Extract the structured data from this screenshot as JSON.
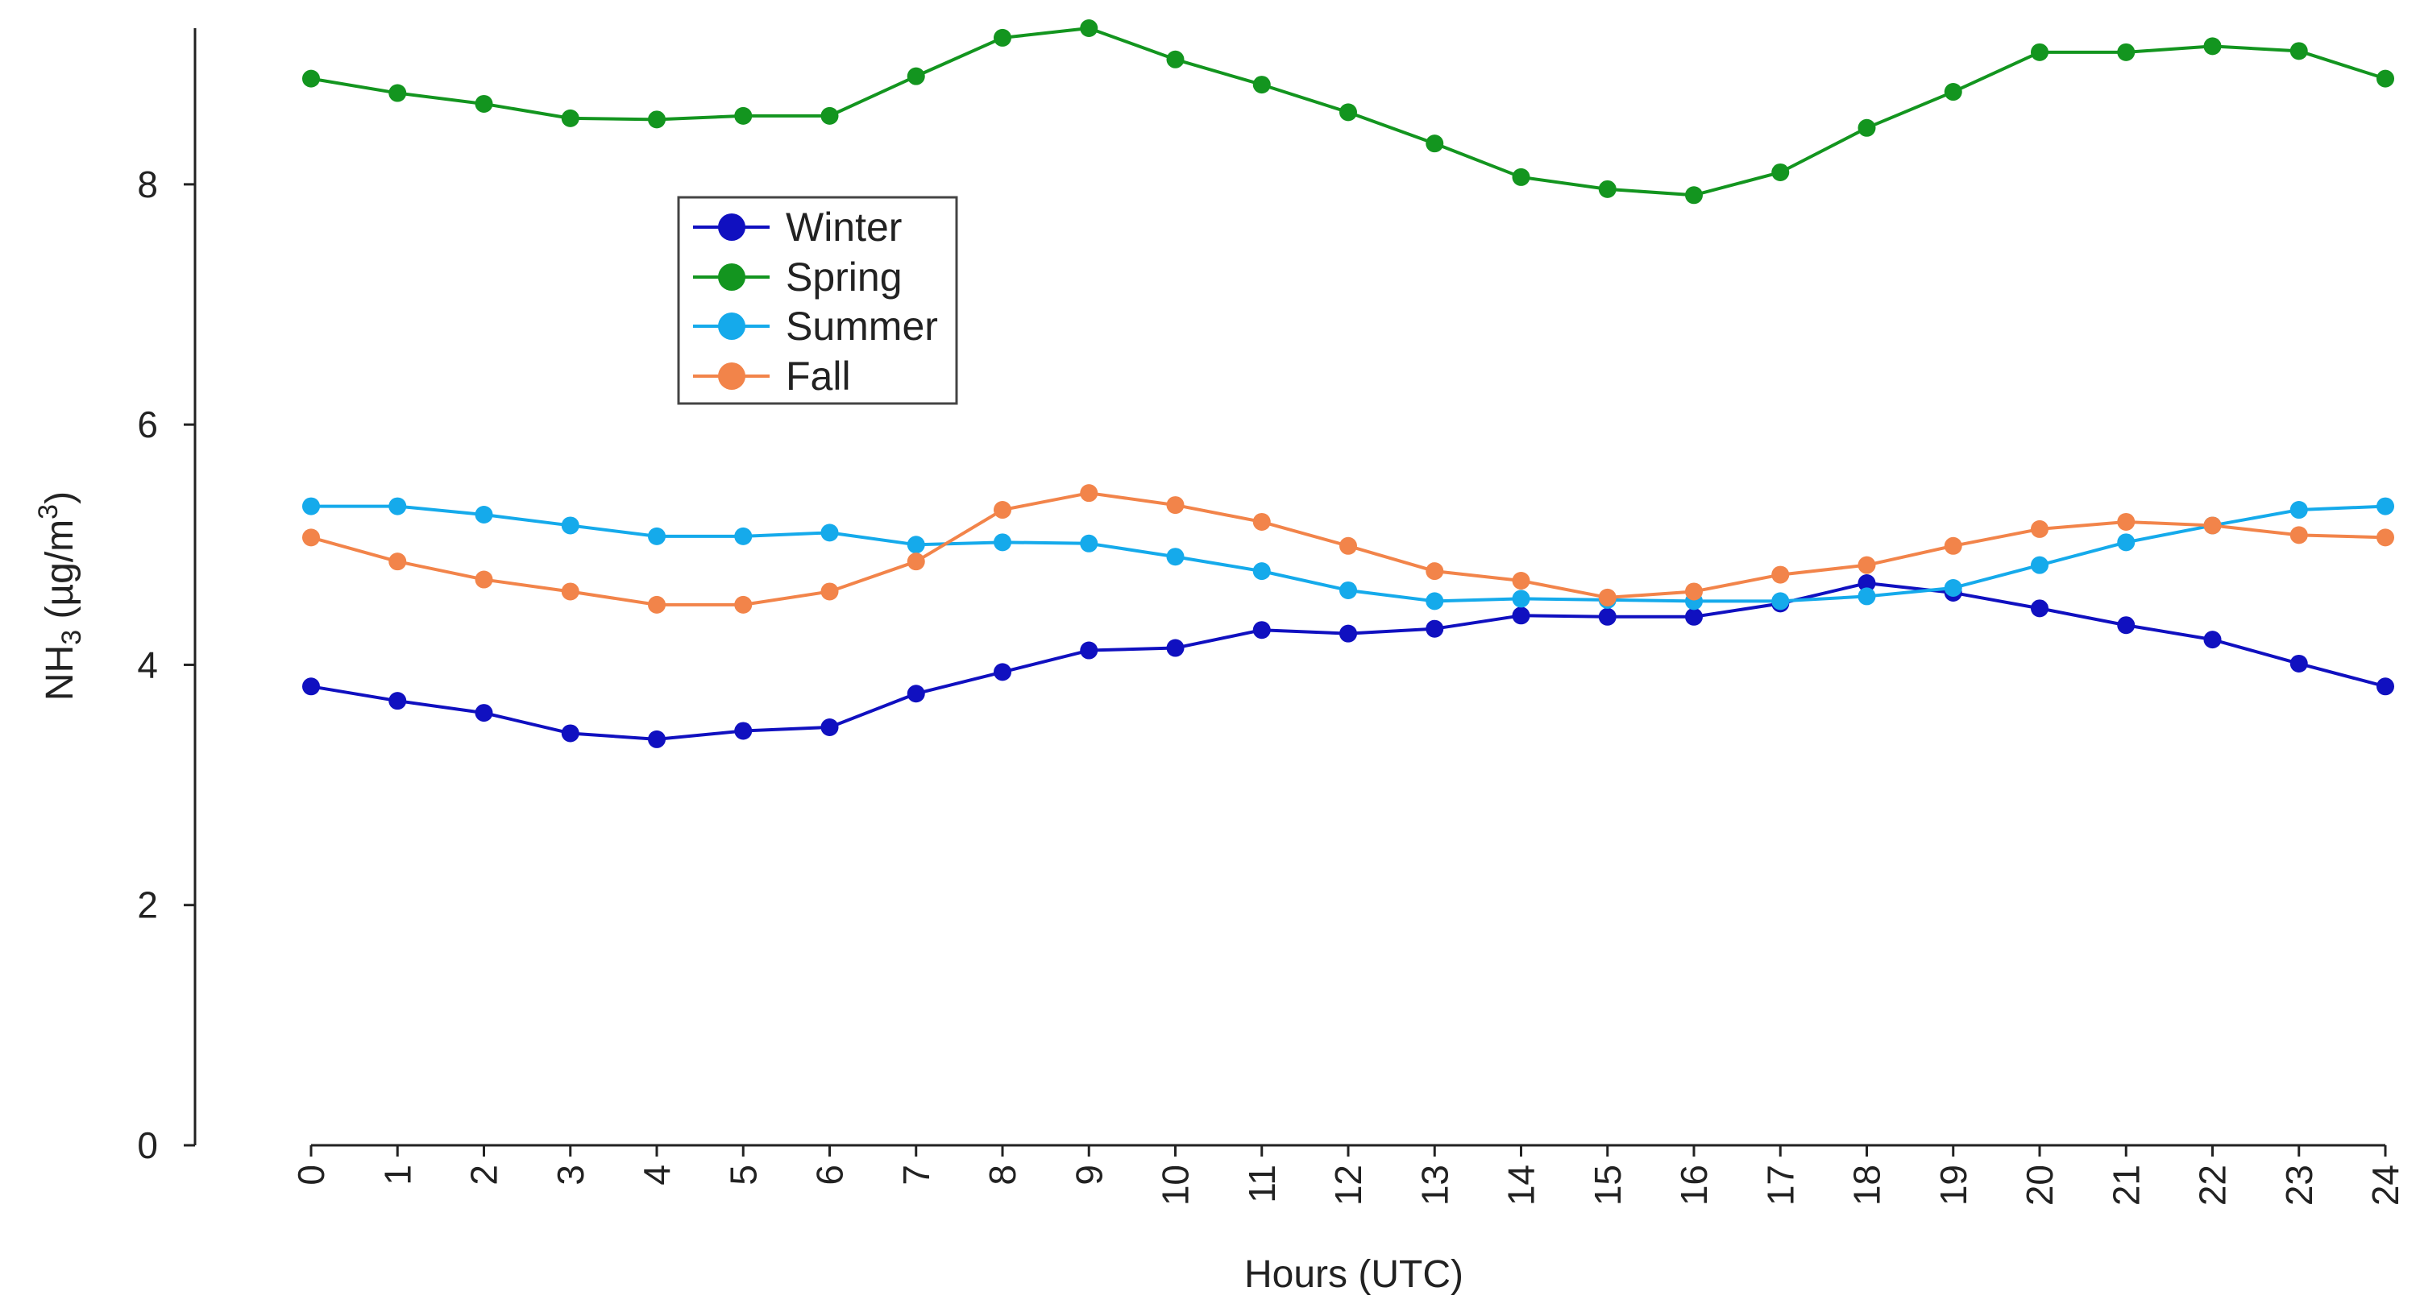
{
  "chart_data": {
    "type": "line",
    "title": "",
    "xlabel": "Hours (UTC)",
    "ylabel": {
      "prefix": "NH",
      "sub": "3",
      "middle": " (µg/m",
      "sup": "3",
      "suffix": ")"
    },
    "x": [
      0,
      1,
      2,
      3,
      4,
      5,
      6,
      7,
      8,
      9,
      10,
      11,
      12,
      13,
      14,
      15,
      16,
      17,
      18,
      19,
      20,
      21,
      22,
      23,
      24
    ],
    "x_tick_labels": [
      "0",
      "1",
      "2",
      "3",
      "4",
      "5",
      "6",
      "7",
      "8",
      "9",
      "10",
      "11",
      "12",
      "13",
      "14",
      "15",
      "16",
      "17",
      "18",
      "19",
      "20",
      "21",
      "22",
      "23",
      "24"
    ],
    "xlim": [
      0,
      24
    ],
    "ylim": [
      0,
      9.3
    ],
    "y_ticks": [
      0,
      2,
      4,
      6,
      8
    ],
    "y_tick_labels": [
      "0",
      "2",
      "4",
      "6",
      "8"
    ],
    "grid": false,
    "legend_position": "upper-left",
    "series": [
      {
        "name": "Winter",
        "color": "#1010c0",
        "values": [
          3.82,
          3.7,
          3.6,
          3.43,
          3.38,
          3.45,
          3.48,
          3.76,
          3.94,
          4.12,
          4.14,
          4.29,
          4.26,
          4.3,
          4.41,
          4.4,
          4.4,
          4.51,
          4.68,
          4.6,
          4.47,
          4.33,
          4.21,
          4.01,
          3.82
        ]
      },
      {
        "name": "Spring",
        "color": "#13951f",
        "values": [
          8.88,
          8.76,
          8.67,
          8.55,
          8.54,
          8.57,
          8.57,
          8.9,
          9.22,
          9.3,
          9.04,
          8.83,
          8.6,
          8.34,
          8.06,
          7.96,
          7.91,
          8.1,
          8.47,
          8.77,
          9.1,
          9.1,
          9.15,
          9.11,
          8.88
        ]
      },
      {
        "name": "Summer",
        "color": "#15aaeb",
        "values": [
          5.32,
          5.32,
          5.25,
          5.16,
          5.07,
          5.07,
          5.1,
          5.0,
          5.02,
          5.01,
          4.9,
          4.78,
          4.62,
          4.53,
          4.55,
          4.54,
          4.53,
          4.53,
          4.57,
          4.64,
          4.83,
          5.02,
          5.16,
          5.29,
          5.32
        ]
      },
      {
        "name": "Fall",
        "color": "#f2844a",
        "values": [
          5.06,
          4.86,
          4.71,
          4.61,
          4.5,
          4.5,
          4.61,
          4.86,
          5.29,
          5.43,
          5.33,
          5.19,
          4.99,
          4.78,
          4.7,
          4.56,
          4.61,
          4.75,
          4.83,
          4.99,
          5.13,
          5.19,
          5.16,
          5.08,
          5.06
        ]
      }
    ]
  }
}
